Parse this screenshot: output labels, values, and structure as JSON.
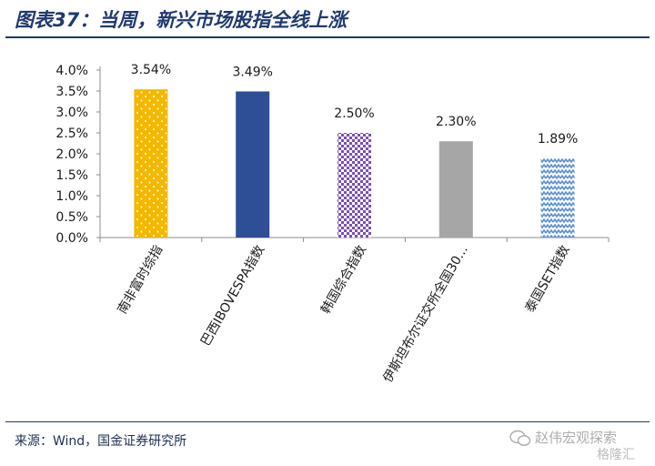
{
  "title": "图表37：当周，新兴市场股指全线上涨",
  "source": "来源：Wind，国金证券研究所",
  "watermark": {
    "line1": "赵伟宏观探索",
    "line2": "格隆汇"
  },
  "chart_data": {
    "type": "bar",
    "categories": [
      "南非富时综指",
      "巴西IBOVESPA指数",
      "韩国综合指数",
      "伊斯坦布尔证交所全国30...",
      "泰国SET指数"
    ],
    "values": [
      3.54,
      3.49,
      2.5,
      2.3,
      1.89
    ],
    "data_labels": [
      "3.54%",
      "3.49%",
      "2.50%",
      "2.30%",
      "1.89%"
    ],
    "ylim": [
      0,
      4.0
    ],
    "yticks": [
      "0.0%",
      "0.5%",
      "1.0%",
      "1.5%",
      "2.0%",
      "2.5%",
      "3.0%",
      "3.5%",
      "4.0%"
    ],
    "grid": false,
    "colors": [
      "#f5b800",
      "#2e4e96",
      "#7b4fb4",
      "#a6a6a6",
      "#5b8fd6"
    ]
  }
}
